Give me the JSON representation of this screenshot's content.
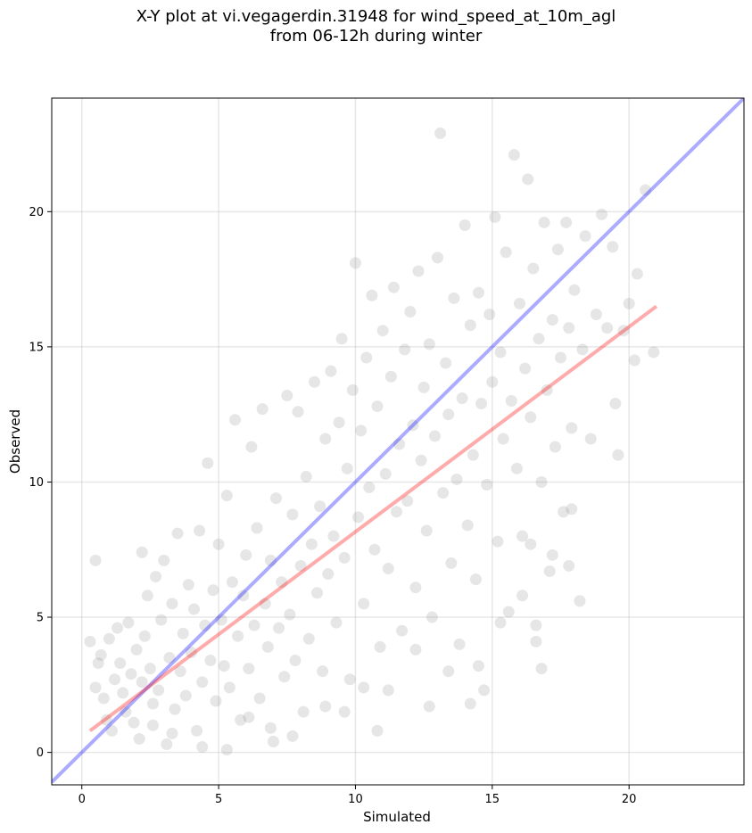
{
  "title": [
    "X-Y plot at vi.vegagerdin.31948 for wind_speed_at_10m_agl",
    "from 06-12h during winter"
  ],
  "chart_data": {
    "type": "scatter",
    "title": "X-Y plot at vi.vegagerdin.31948 for wind_speed_at_10m_agl\nfrom 06-12h during winter",
    "xlabel": "Simulated",
    "ylabel": "Observed",
    "xlim": [
      -1.1,
      24.2
    ],
    "ylim": [
      -1.2,
      24.2
    ],
    "xticks": [
      0,
      5,
      10,
      15,
      20
    ],
    "yticks": [
      0,
      5,
      10,
      15,
      20
    ],
    "grid": true,
    "point_color": "#808080",
    "reference_lines": [
      {
        "role": "identity y = x",
        "color": "#0000ff",
        "x": [
          -1.1,
          24.2
        ],
        "y": [
          -1.1,
          24.2
        ]
      },
      {
        "role": "linear fit",
        "color": "#ff0000",
        "x": [
          0.3,
          21.0
        ],
        "y": [
          0.8,
          16.5
        ]
      }
    ],
    "points": [
      [
        0.5,
        7.1
      ],
      [
        0.3,
        4.1
      ],
      [
        0.5,
        2.4
      ],
      [
        0.6,
        3.3
      ],
      [
        0.7,
        3.6
      ],
      [
        0.8,
        2.0
      ],
      [
        0.9,
        1.2
      ],
      [
        1.0,
        4.2
      ],
      [
        1.1,
        0.8
      ],
      [
        1.2,
        2.7
      ],
      [
        1.3,
        4.6
      ],
      [
        1.4,
        3.3
      ],
      [
        1.5,
        2.2
      ],
      [
        1.6,
        1.5
      ],
      [
        1.7,
        4.8
      ],
      [
        1.8,
        2.9
      ],
      [
        1.9,
        1.1
      ],
      [
        2.0,
        3.8
      ],
      [
        2.1,
        0.5
      ],
      [
        2.2,
        7.4
      ],
      [
        2.2,
        2.6
      ],
      [
        2.3,
        4.3
      ],
      [
        2.4,
        5.8
      ],
      [
        2.5,
        3.1
      ],
      [
        2.6,
        1.8
      ],
      [
        2.7,
        6.5
      ],
      [
        2.8,
        2.3
      ],
      [
        2.9,
        4.9
      ],
      [
        3.0,
        7.1
      ],
      [
        3.1,
        0.3
      ],
      [
        3.2,
        3.5
      ],
      [
        3.3,
        5.5
      ],
      [
        3.4,
        1.6
      ],
      [
        3.5,
        8.1
      ],
      [
        3.6,
        3.0
      ],
      [
        3.7,
        4.4
      ],
      [
        3.8,
        2.1
      ],
      [
        3.9,
        6.2
      ],
      [
        4.0,
        3.7
      ],
      [
        4.1,
        5.3
      ],
      [
        4.2,
        0.8
      ],
      [
        4.3,
        8.2
      ],
      [
        4.4,
        2.6
      ],
      [
        4.5,
        4.7
      ],
      [
        4.6,
        10.7
      ],
      [
        4.7,
        3.4
      ],
      [
        4.8,
        6.0
      ],
      [
        4.9,
        1.9
      ],
      [
        5.0,
        7.7
      ],
      [
        5.1,
        4.9
      ],
      [
        5.2,
        3.2
      ],
      [
        5.3,
        9.5
      ],
      [
        5.4,
        2.4
      ],
      [
        5.5,
        6.3
      ],
      [
        5.6,
        12.3
      ],
      [
        5.7,
        4.3
      ],
      [
        5.8,
        1.2
      ],
      [
        5.9,
        5.8
      ],
      [
        6.0,
        7.3
      ],
      [
        6.1,
        3.1
      ],
      [
        6.2,
        11.3
      ],
      [
        6.3,
        4.7
      ],
      [
        6.4,
        8.3
      ],
      [
        6.5,
        2.0
      ],
      [
        6.6,
        12.7
      ],
      [
        6.7,
        5.5
      ],
      [
        6.8,
        3.9
      ],
      [
        6.9,
        7.1
      ],
      [
        7.0,
        0.4
      ],
      [
        7.1,
        9.4
      ],
      [
        7.2,
        4.6
      ],
      [
        7.3,
        6.3
      ],
      [
        7.4,
        2.8
      ],
      [
        7.5,
        13.2
      ],
      [
        7.6,
        5.1
      ],
      [
        7.7,
        8.8
      ],
      [
        7.8,
        3.4
      ],
      [
        7.9,
        12.6
      ],
      [
        8.0,
        6.9
      ],
      [
        8.1,
        1.5
      ],
      [
        8.2,
        10.2
      ],
      [
        8.3,
        4.2
      ],
      [
        8.4,
        7.7
      ],
      [
        8.5,
        13.7
      ],
      [
        8.6,
        5.9
      ],
      [
        8.7,
        9.1
      ],
      [
        8.8,
        3.0
      ],
      [
        8.9,
        11.6
      ],
      [
        9.0,
        6.6
      ],
      [
        9.1,
        14.1
      ],
      [
        9.2,
        8.0
      ],
      [
        9.3,
        4.8
      ],
      [
        9.4,
        12.2
      ],
      [
        9.5,
        15.3
      ],
      [
        9.6,
        7.2
      ],
      [
        9.7,
        10.5
      ],
      [
        9.8,
        2.7
      ],
      [
        9.9,
        13.4
      ],
      [
        10.0,
        18.1
      ],
      [
        10.1,
        8.7
      ],
      [
        10.2,
        11.9
      ],
      [
        10.3,
        5.5
      ],
      [
        10.4,
        14.6
      ],
      [
        10.5,
        9.8
      ],
      [
        10.6,
        16.9
      ],
      [
        10.7,
        7.5
      ],
      [
        10.8,
        12.8
      ],
      [
        10.9,
        3.9
      ],
      [
        11.0,
        15.6
      ],
      [
        11.1,
        10.3
      ],
      [
        11.2,
        6.8
      ],
      [
        11.3,
        13.9
      ],
      [
        11.4,
        17.2
      ],
      [
        11.5,
        8.9
      ],
      [
        11.6,
        11.4
      ],
      [
        11.7,
        4.5
      ],
      [
        11.8,
        14.9
      ],
      [
        11.9,
        9.3
      ],
      [
        12.0,
        16.3
      ],
      [
        12.1,
        12.1
      ],
      [
        12.2,
        6.1
      ],
      [
        12.3,
        17.8
      ],
      [
        12.4,
        10.8
      ],
      [
        12.5,
        13.5
      ],
      [
        12.6,
        8.2
      ],
      [
        12.7,
        15.1
      ],
      [
        12.8,
        5.0
      ],
      [
        12.9,
        11.7
      ],
      [
        13.0,
        18.3
      ],
      [
        13.1,
        22.9
      ],
      [
        13.2,
        9.6
      ],
      [
        13.3,
        14.4
      ],
      [
        13.4,
        12.5
      ],
      [
        13.5,
        7.0
      ],
      [
        13.6,
        16.8
      ],
      [
        13.7,
        10.1
      ],
      [
        13.8,
        4.0
      ],
      [
        13.9,
        13.1
      ],
      [
        14.0,
        19.5
      ],
      [
        14.1,
        8.4
      ],
      [
        14.2,
        15.8
      ],
      [
        14.3,
        11.0
      ],
      [
        14.4,
        6.4
      ],
      [
        14.5,
        17.0
      ],
      [
        14.6,
        12.9
      ],
      [
        14.7,
        2.3
      ],
      [
        14.8,
        9.9
      ],
      [
        14.9,
        16.2
      ],
      [
        15.0,
        13.7
      ],
      [
        15.1,
        19.8
      ],
      [
        15.2,
        7.8
      ],
      [
        15.3,
        14.8
      ],
      [
        15.4,
        11.6
      ],
      [
        15.5,
        18.5
      ],
      [
        15.6,
        5.2
      ],
      [
        15.7,
        13.0
      ],
      [
        15.8,
        22.1
      ],
      [
        15.9,
        10.5
      ],
      [
        16.0,
        16.6
      ],
      [
        16.1,
        8.0
      ],
      [
        16.2,
        14.2
      ],
      [
        16.3,
        21.2
      ],
      [
        16.4,
        12.4
      ],
      [
        16.5,
        17.9
      ],
      [
        16.6,
        4.1
      ],
      [
        16.7,
        15.3
      ],
      [
        16.8,
        10.0
      ],
      [
        16.9,
        19.6
      ],
      [
        17.0,
        13.4
      ],
      [
        17.1,
        6.7
      ],
      [
        17.2,
        16.0
      ],
      [
        17.3,
        11.3
      ],
      [
        17.4,
        18.6
      ],
      [
        17.5,
        14.6
      ],
      [
        17.6,
        8.9
      ],
      [
        17.7,
        19.6
      ],
      [
        17.8,
        15.7
      ],
      [
        17.9,
        12.0
      ],
      [
        18.0,
        17.1
      ],
      [
        18.2,
        5.6
      ],
      [
        18.3,
        14.9
      ],
      [
        18.4,
        19.1
      ],
      [
        18.6,
        11.6
      ],
      [
        18.8,
        16.2
      ],
      [
        19.0,
        19.9
      ],
      [
        19.2,
        15.7
      ],
      [
        19.4,
        18.7
      ],
      [
        19.5,
        12.9
      ],
      [
        19.6,
        11.0
      ],
      [
        19.8,
        15.6
      ],
      [
        20.0,
        16.6
      ],
      [
        20.2,
        14.5
      ],
      [
        20.3,
        17.7
      ],
      [
        20.6,
        20.8
      ],
      [
        20.9,
        14.8
      ],
      [
        2.6,
        1.0
      ],
      [
        3.3,
        0.7
      ],
      [
        4.4,
        0.2
      ],
      [
        5.3,
        0.1
      ],
      [
        6.1,
        1.3
      ],
      [
        6.9,
        0.9
      ],
      [
        7.7,
        0.6
      ],
      [
        8.9,
        1.7
      ],
      [
        9.6,
        1.5
      ],
      [
        10.3,
        2.4
      ],
      [
        10.8,
        0.8
      ],
      [
        11.2,
        2.3
      ],
      [
        12.2,
        3.8
      ],
      [
        12.7,
        1.7
      ],
      [
        13.4,
        3.0
      ],
      [
        14.2,
        1.8
      ],
      [
        14.5,
        3.2
      ],
      [
        15.3,
        4.8
      ],
      [
        16.1,
        5.8
      ],
      [
        16.6,
        4.7
      ],
      [
        16.8,
        3.1
      ],
      [
        17.2,
        7.3
      ],
      [
        17.8,
        6.9
      ],
      [
        17.9,
        9.0
      ],
      [
        16.4,
        7.7
      ]
    ]
  }
}
